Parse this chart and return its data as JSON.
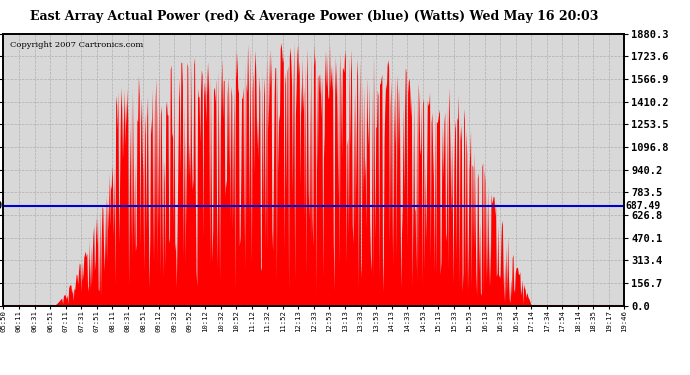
{
  "title": "East Array Actual Power (red) & Average Power (blue) (Watts) Wed May 16 20:03",
  "copyright": "Copyright 2007 Cartronics.com",
  "avg_power": 687.49,
  "ymax": 1880.3,
  "ymin": 0.0,
  "yticks": [
    0.0,
    156.7,
    313.4,
    470.1,
    626.8,
    783.5,
    940.2,
    1096.8,
    1253.5,
    1410.2,
    1566.9,
    1723.6,
    1880.3
  ],
  "ytick_labels": [
    "0.0",
    "156.7",
    "313.4",
    "470.1",
    "626.8",
    "783.5",
    "940.2",
    "1096.8",
    "1253.5",
    "1410.2",
    "1566.9",
    "1723.6",
    "1880.3"
  ],
  "xtick_labels": [
    "05:50",
    "06:11",
    "06:31",
    "06:51",
    "07:11",
    "07:31",
    "07:51",
    "08:11",
    "08:31",
    "08:51",
    "09:12",
    "09:32",
    "09:52",
    "10:12",
    "10:32",
    "10:52",
    "11:12",
    "11:32",
    "11:52",
    "12:13",
    "12:33",
    "12:53",
    "13:13",
    "13:33",
    "13:53",
    "14:13",
    "14:33",
    "14:53",
    "15:13",
    "15:33",
    "15:53",
    "16:13",
    "16:33",
    "16:54",
    "17:14",
    "17:34",
    "17:54",
    "18:14",
    "18:35",
    "19:17",
    "19:46"
  ],
  "plot_bg_color": "#d8d8d8",
  "line_color_avg": "#0000cc",
  "fill_color": "#ff0000",
  "border_color": "#000000",
  "title_bg": "#ffffff",
  "grid_color": "#aaaaaa"
}
